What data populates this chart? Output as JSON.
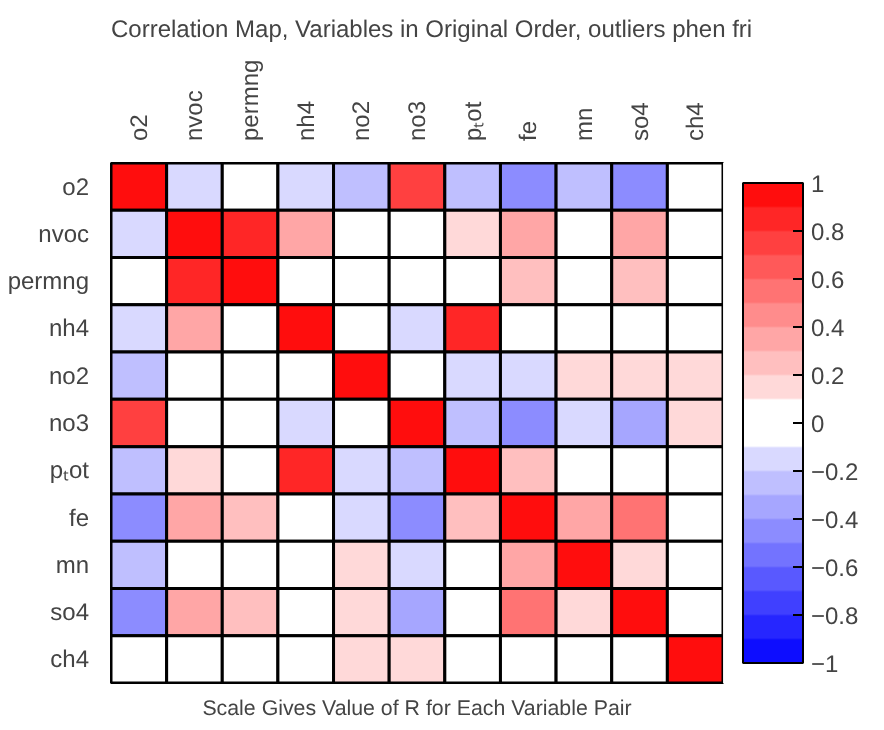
{
  "chart_data": {
    "type": "heatmap",
    "title": "Correlation Map, Variables in Original Order, outliers phen fri",
    "xlabel": "Scale Gives Value of R for Each Variable Pair",
    "categories": [
      "o2",
      "nvoc",
      "permng",
      "nh4",
      "no2",
      "no3",
      "pₜot",
      "fe",
      "mn",
      "so4",
      "ch4"
    ],
    "y_categories": [
      "o2",
      "nvoc",
      "permng",
      "nh4",
      "no2",
      "no3",
      "pₜot",
      "fe",
      "mn",
      "so4",
      "ch4"
    ],
    "cells": [
      [
        1,
        -0.15,
        0,
        -0.15,
        -0.25,
        0.75,
        -0.25,
        -0.4,
        -0.25,
        -0.5,
        0
      ],
      [
        -0.15,
        1,
        0.8,
        0.3,
        0,
        0,
        0.15,
        0.3,
        0,
        0.3,
        0
      ],
      [
        0,
        0.8,
        1,
        0,
        0,
        0,
        0,
        0.25,
        0,
        0.25,
        0
      ],
      [
        -0.15,
        0.3,
        0,
        1,
        0,
        -0.2,
        0.8,
        0,
        0,
        0,
        0
      ],
      [
        -0.25,
        0,
        0,
        0,
        1,
        0,
        -0.15,
        -0.12,
        0.2,
        0.2,
        0.15
      ],
      [
        0.75,
        0,
        0,
        -0.2,
        0,
        1,
        -0.25,
        -0.4,
        -0.12,
        -0.3,
        0.12
      ],
      [
        -0.25,
        0.15,
        0,
        0.8,
        -0.15,
        -0.25,
        1,
        0.25,
        0,
        0,
        0
      ],
      [
        -0.4,
        0.3,
        0.25,
        0,
        -0.12,
        -0.4,
        0.25,
        1,
        0.3,
        0.55,
        0
      ],
      [
        -0.25,
        0,
        0,
        0,
        0.2,
        -0.12,
        0,
        0.3,
        1,
        0.2,
        0
      ],
      [
        -0.5,
        0.3,
        0.25,
        0,
        0.2,
        -0.3,
        0,
        0.55,
        0.2,
        1,
        0
      ],
      [
        0,
        0,
        0,
        0,
        0.15,
        0.12,
        0,
        0,
        0,
        0,
        1
      ]
    ],
    "clim": [
      -1,
      1
    ],
    "cticks": [
      -1,
      -0.8,
      -0.6,
      -0.4,
      -0.2,
      0,
      0.2,
      0.4,
      0.6,
      0.8,
      1
    ]
  }
}
